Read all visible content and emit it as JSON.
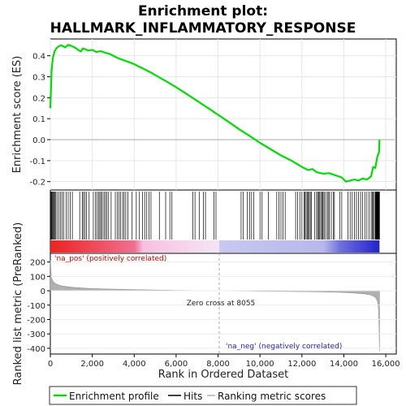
{
  "chart_data": {
    "type": "line",
    "title_line1": "Enrichment plot:",
    "title_line2": "HALLMARK_INFLAMMATORY_RESPONSE",
    "ylabel_top": "Enrichment score (ES)",
    "ylabel_bottom": "Ranked list metric (PreRanked)",
    "xlabel": "Rank in Ordered Dataset",
    "x_range": [
      0,
      16500
    ],
    "x_ticks": [
      0,
      2000,
      4000,
      6000,
      8000,
      10000,
      12000,
      14000,
      16000
    ],
    "x_tick_labels": [
      "0",
      "2,000",
      "4,000",
      "6,000",
      "8,000",
      "10,000",
      "12,000",
      "14,000",
      "16,000"
    ],
    "es_ylim": [
      -0.24,
      0.48
    ],
    "es_ticks": [
      -0.2,
      -0.1,
      0.0,
      0.1,
      0.2,
      0.3,
      0.4
    ],
    "es_tick_labels": [
      "-0.2",
      "-0.1",
      "0.0",
      "0.1",
      "0.2",
      "0.3",
      "0.4"
    ],
    "metric_ylim": [
      -440,
      260
    ],
    "metric_ticks": [
      -400,
      -300,
      -200,
      -100,
      0,
      100,
      200
    ],
    "metric_tick_labels": [
      "-400",
      "-300",
      "-200",
      "-100",
      "0",
      "100",
      "200"
    ],
    "total_genes": 15700,
    "zero_cross": 8055,
    "annotations": {
      "pos": "'na_pos' (positively correlated)",
      "neg": "'na_neg' (negatively correlated)",
      "zero": "Zero cross at 8055"
    },
    "legend": [
      "Enrichment profile",
      "Hits",
      "Ranking metric scores"
    ],
    "colors": {
      "es_line": "#00dd00",
      "hits": "#000000",
      "metric_fill": "#b0b0b0",
      "pos_strong": "#ee2222",
      "pos_weak": "#f8c0e0",
      "neg_weak": "#c8c8f0",
      "neg_strong": "#2222cc",
      "pos_text": "#cc0000",
      "neg_text": "#2222bb"
    },
    "es_series": {
      "x": [
        0,
        60,
        120,
        200,
        280,
        400,
        520,
        700,
        850,
        1000,
        1150,
        1300,
        1450,
        1550,
        1650,
        1800,
        2000,
        2200,
        2400,
        2600,
        2800,
        3000,
        3200,
        3400,
        3600,
        3800,
        4000,
        4200,
        4400,
        4600,
        4800,
        5000,
        5500,
        6000,
        6500,
        7000,
        7500,
        8055,
        8500,
        9000,
        9500,
        10000,
        10500,
        11000,
        11500,
        12000,
        12300,
        12500,
        12700,
        13000,
        13300,
        13600,
        13900,
        14100,
        14300,
        14500,
        14700,
        14900,
        15100,
        15300,
        15400,
        15500,
        15600,
        15680,
        15700
      ],
      "y": [
        0.15,
        0.33,
        0.39,
        0.42,
        0.435,
        0.445,
        0.45,
        0.44,
        0.452,
        0.447,
        0.44,
        0.43,
        0.42,
        0.435,
        0.432,
        0.425,
        0.428,
        0.418,
        0.422,
        0.415,
        0.41,
        0.4,
        0.39,
        0.382,
        0.375,
        0.368,
        0.36,
        0.35,
        0.34,
        0.33,
        0.32,
        0.308,
        0.28,
        0.25,
        0.218,
        0.185,
        0.152,
        0.115,
        0.085,
        0.05,
        0.018,
        -0.015,
        -0.045,
        -0.075,
        -0.1,
        -0.13,
        -0.145,
        -0.14,
        -0.155,
        -0.162,
        -0.16,
        -0.17,
        -0.18,
        -0.2,
        -0.195,
        -0.19,
        -0.195,
        -0.185,
        -0.19,
        -0.175,
        -0.13,
        -0.135,
        -0.08,
        -0.06,
        0.0
      ]
    },
    "metric_series": {
      "x": [
        0,
        50,
        150,
        300,
        500,
        800,
        1200,
        2000,
        3000,
        4000,
        5000,
        6000,
        7000,
        8055,
        9000,
        10000,
        11000,
        12000,
        13000,
        13800,
        14500,
        15000,
        15300,
        15500,
        15600,
        15650,
        15680,
        15700
      ],
      "y": [
        210,
        90,
        60,
        45,
        35,
        28,
        22,
        15,
        11,
        8,
        5,
        3,
        1.5,
        0,
        -1.5,
        -3,
        -4.5,
        -6,
        -8,
        -11,
        -16,
        -22,
        -30,
        -45,
        -70,
        -120,
        -250,
        -420
      ]
    },
    "hits": [
      15,
      40,
      70,
      100,
      130,
      170,
      220,
      260,
      320,
      400,
      480,
      560,
      640,
      760,
      850,
      950,
      1050,
      1400,
      1520,
      1580,
      1640,
      1720,
      1850,
      2050,
      2150,
      2230,
      2300,
      2360,
      2420,
      2480,
      2560,
      2630,
      2700,
      2780,
      2900,
      3100,
      3200,
      3280,
      3350,
      3450,
      3520,
      3600,
      3700,
      3900,
      4100,
      4250,
      4400,
      4500,
      4600,
      4700,
      4800,
      5200,
      5500,
      5700,
      5800,
      6800,
      6900,
      7100,
      7300,
      7400,
      7800,
      7900,
      9100,
      9200,
      9400,
      9500,
      9600,
      9700,
      10000,
      10100,
      10400,
      10800,
      10900,
      11000,
      11100,
      11200,
      11700,
      11800,
      11900,
      12000,
      12100,
      12150,
      12200,
      12250,
      12300,
      12350,
      12400,
      12450,
      12600,
      12700,
      12750,
      12800,
      12850,
      12900,
      12950,
      13000,
      13050,
      13100,
      13200,
      13250,
      13300,
      13400,
      13500,
      13550,
      13800,
      13900,
      14200,
      14300,
      14400,
      14500,
      14600,
      14700,
      14800,
      14900,
      15000,
      15100,
      15200,
      15300,
      15350,
      15400,
      15450,
      15500,
      15520,
      15540,
      15560,
      15580,
      15600,
      15620,
      15640,
      15660,
      15680,
      15700
    ]
  }
}
